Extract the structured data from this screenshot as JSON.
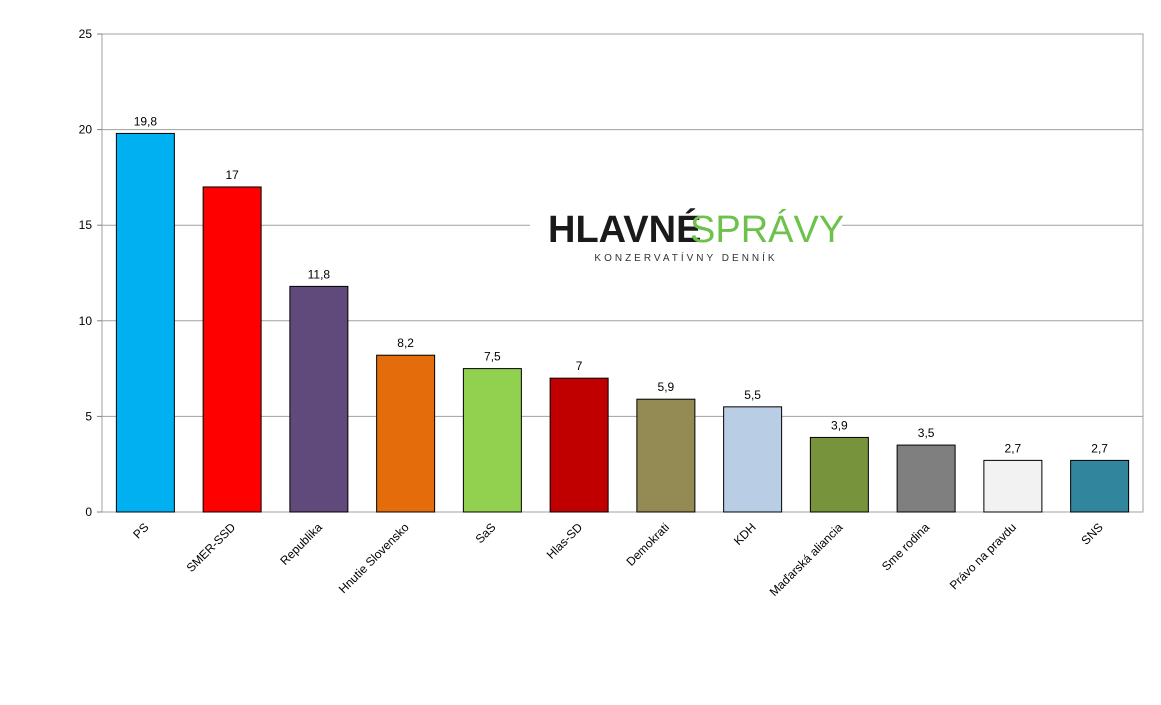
{
  "chart_data": {
    "type": "bar",
    "categories": [
      "PS",
      "SMER-SSD",
      "Republika",
      "Hnutie Slovensko",
      "SaS",
      "Hlas-SD",
      "Demokrati",
      "KDH",
      "Maďarská aliancia",
      "Sme rodina",
      "Právo na pravdu",
      "SNS"
    ],
    "values": [
      19.8,
      17,
      11.8,
      8.2,
      7.5,
      7,
      5.9,
      5.5,
      3.9,
      3.5,
      2.7,
      2.7
    ],
    "value_labels": [
      "19,8",
      "17",
      "11,8",
      "8,2",
      "7,5",
      "7",
      "5,9",
      "5,5",
      "3,9",
      "3,5",
      "2,7",
      "2,7"
    ],
    "colors": [
      "#00b0f0",
      "#ff0000",
      "#604a7b",
      "#e46c0a",
      "#92d050",
      "#c00000",
      "#948a54",
      "#b9cde5",
      "#77933c",
      "#7f7f7f",
      "#f2f2f2",
      "#31859c"
    ],
    "ylim": [
      0,
      25
    ],
    "yticks": [
      0,
      5,
      10,
      15,
      20,
      25
    ],
    "grid": true,
    "logo": {
      "left": "HLAVNÉ",
      "right": "SPRÁVY",
      "tagline": "KONZERVATÍVNY DENNÍK"
    }
  }
}
